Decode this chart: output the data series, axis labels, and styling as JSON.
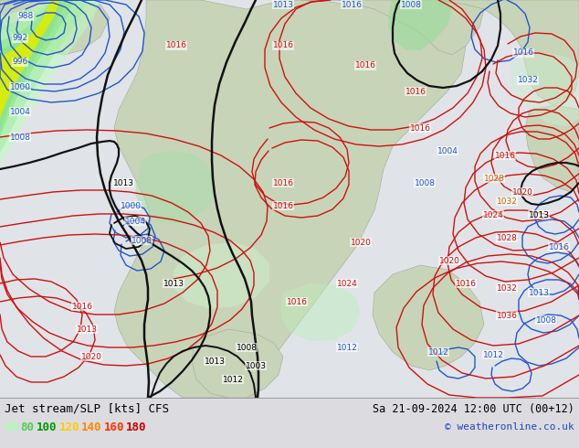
{
  "title_left": "Jet stream/SLP [kts] CFS",
  "title_right": "Sa 21-09-2024 12:00 UTC (00+12)",
  "copyright": "© weatheronline.co.uk",
  "legend_values": [
    60,
    80,
    100,
    120,
    140,
    160,
    180
  ],
  "legend_colors": [
    "#aaffaa",
    "#55cc55",
    "#009900",
    "#ffcc00",
    "#ff8800",
    "#ff3300",
    "#cc0000"
  ],
  "bg_color": "#e8e8e8",
  "land_color": "#d4dfc8",
  "sea_color": "#c8d8e8",
  "figsize": [
    6.34,
    4.9
  ],
  "dpi": 100,
  "bottom_bar_color": "#dcdce0",
  "black_labels": [
    [
      190,
      310,
      "1013"
    ],
    [
      135,
      200,
      "1013"
    ],
    [
      235,
      395,
      "1013"
    ],
    [
      255,
      415,
      "1012"
    ],
    [
      280,
      400,
      "1003"
    ],
    [
      270,
      380,
      "1008"
    ],
    [
      590,
      235,
      "1013"
    ]
  ],
  "blue_labels": [
    [
      28,
      18,
      "988"
    ],
    [
      22,
      42,
      "992"
    ],
    [
      22,
      68,
      "996"
    ],
    [
      22,
      95,
      "1000"
    ],
    [
      22,
      122,
      "1004"
    ],
    [
      22,
      150,
      "1008"
    ],
    [
      143,
      225,
      "1000"
    ],
    [
      148,
      242,
      "1004"
    ],
    [
      155,
      263,
      "1008"
    ],
    [
      310,
      5,
      "1013"
    ],
    [
      385,
      5,
      "1016"
    ],
    [
      450,
      5,
      "1008"
    ],
    [
      490,
      165,
      "1004"
    ],
    [
      465,
      200,
      "1008"
    ],
    [
      573,
      58,
      "1016"
    ],
    [
      578,
      88,
      "1032"
    ],
    [
      612,
      270,
      "1016"
    ],
    [
      590,
      320,
      "1013"
    ],
    [
      598,
      350,
      "1008"
    ],
    [
      540,
      388,
      "1012"
    ],
    [
      480,
      385,
      "1012"
    ],
    [
      380,
      380,
      "1012"
    ]
  ],
  "red_labels": [
    [
      90,
      335,
      "1016"
    ],
    [
      95,
      360,
      "1013"
    ],
    [
      100,
      390,
      "1020"
    ],
    [
      193,
      50,
      "1016"
    ],
    [
      310,
      50,
      "1016"
    ],
    [
      400,
      72,
      "1016"
    ],
    [
      455,
      100,
      "1016"
    ],
    [
      460,
      140,
      "1016"
    ],
    [
      310,
      200,
      "1016"
    ],
    [
      310,
      225,
      "1016"
    ],
    [
      395,
      265,
      "1020"
    ],
    [
      380,
      310,
      "1024"
    ],
    [
      492,
      285,
      "1020"
    ],
    [
      510,
      310,
      "1016"
    ],
    [
      553,
      170,
      "1016"
    ],
    [
      572,
      210,
      "1020"
    ],
    [
      540,
      235,
      "1024"
    ],
    [
      555,
      260,
      "1028"
    ],
    [
      555,
      315,
      "1032"
    ],
    [
      555,
      345,
      "1036"
    ],
    [
      325,
      330,
      "1016"
    ]
  ]
}
